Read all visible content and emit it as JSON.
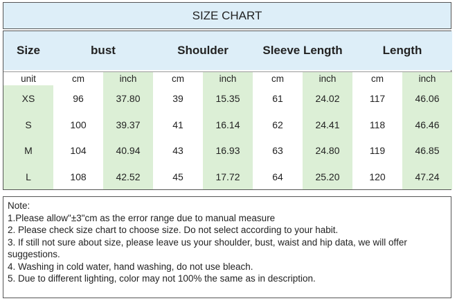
{
  "header": {
    "title": "SIZE CHART",
    "columns": [
      "Size",
      "bust",
      "Shoulder",
      "Sleeve Length",
      "Length"
    ]
  },
  "table": {
    "units": [
      "unit",
      "cm",
      "inch",
      "cm",
      "inch",
      "cm",
      "inch",
      "cm",
      "inch"
    ],
    "rows": [
      [
        "XS",
        "96",
        "37.80",
        "39",
        "15.35",
        "61",
        "24.02",
        "117",
        "46.06"
      ],
      [
        "S",
        "100",
        "39.37",
        "41",
        "16.14",
        "62",
        "24.41",
        "118",
        "46.46"
      ],
      [
        "M",
        "104",
        "40.94",
        "43",
        "16.93",
        "63",
        "24.80",
        "119",
        "46.85"
      ],
      [
        "L",
        "108",
        "42.52",
        "45",
        "17.72",
        "64",
        "25.20",
        "120",
        "47.24"
      ]
    ]
  },
  "notes": {
    "heading": "Note:",
    "items": [
      "1.Please allow\"±3\"cm as the error range due to manual measure",
      "2. Please check size chart to choose size. Do not select according to your habit.",
      "3. If still not sure about size, please leave us your shoulder, bust, waist and hip data, we will offer suggestions.",
      "4. Washing in cold water, hand washing, do not use bleach.",
      "5. Due to different lighting, color may not 100% the same as in description."
    ]
  }
}
